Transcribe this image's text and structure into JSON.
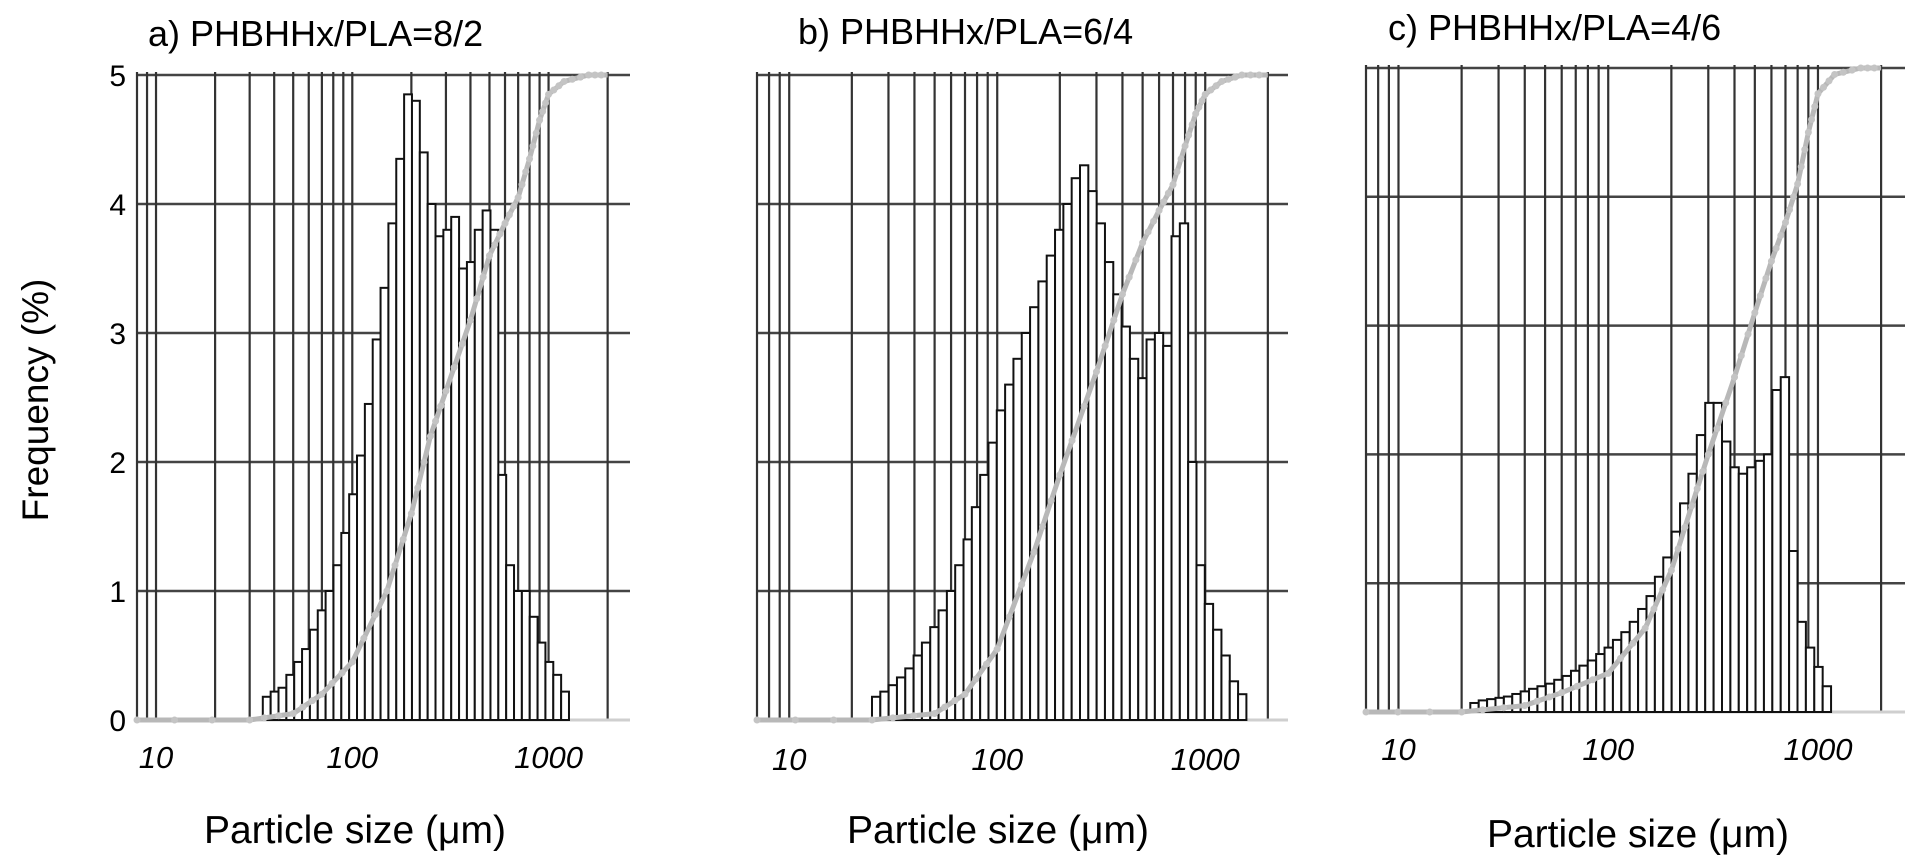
{
  "figure": {
    "ylabel": "Frequency (%)"
  },
  "chart_data": [
    {
      "type": "bar",
      "title": "a) PHBHHx/PLA=8/2",
      "xlabel": "Particle size (μm)",
      "ylabel": "Frequency (%)",
      "x_scale": "log",
      "xlim": [
        8,
        2600
      ],
      "ylim": [
        0,
        5
      ],
      "yticks": [
        "0",
        "1",
        "2",
        "3",
        "4",
        "5"
      ],
      "xticks": [
        {
          "value": 10,
          "label": "10"
        },
        {
          "value": 100,
          "label": "100"
        },
        {
          "value": 1000,
          "label": "1000"
        }
      ],
      "grid": true,
      "bins_per_decade": 25,
      "bin_start": 35,
      "values": [
        0.18,
        0.22,
        0.25,
        0.35,
        0.45,
        0.55,
        0.7,
        0.85,
        1.0,
        1.2,
        1.45,
        1.75,
        2.05,
        2.45,
        2.95,
        3.35,
        3.85,
        4.35,
        4.85,
        4.8,
        4.4,
        4.0,
        3.75,
        3.8,
        3.9,
        3.5,
        3.55,
        3.8,
        3.95,
        3.8,
        1.9,
        1.2,
        1.0,
        1.0,
        0.8,
        0.6,
        0.45,
        0.35,
        0.22
      ],
      "cumulative_curve": [
        [
          8,
          0
        ],
        [
          30,
          0
        ],
        [
          50,
          0.05
        ],
        [
          70,
          0.2
        ],
        [
          100,
          0.45
        ],
        [
          150,
          1.0
        ],
        [
          200,
          1.6
        ],
        [
          250,
          2.2
        ],
        [
          300,
          2.55
        ],
        [
          400,
          3.1
        ],
        [
          500,
          3.6
        ],
        [
          600,
          3.85
        ],
        [
          700,
          4.05
        ],
        [
          800,
          4.35
        ],
        [
          900,
          4.65
        ],
        [
          1000,
          4.85
        ],
        [
          1200,
          4.95
        ],
        [
          1600,
          5.0
        ],
        [
          2000,
          5.0
        ]
      ]
    },
    {
      "type": "bar",
      "title": "b) PHBHHx/PLA=6/4",
      "xlabel": "Particle size (μm)",
      "ylabel": "",
      "x_scale": "log",
      "xlim": [
        7,
        2500
      ],
      "ylim": [
        0,
        5
      ],
      "yticks": [],
      "xticks": [
        {
          "value": 10,
          "label": "10"
        },
        {
          "value": 100,
          "label": "100"
        },
        {
          "value": 1000,
          "label": "1000"
        }
      ],
      "grid": true,
      "bins_per_decade": 25,
      "bin_start": 25,
      "values": [
        0.18,
        0.22,
        0.27,
        0.33,
        0.4,
        0.5,
        0.6,
        0.72,
        0.85,
        1.0,
        1.2,
        1.4,
        1.65,
        1.9,
        2.15,
        2.4,
        2.6,
        2.8,
        3.0,
        3.2,
        3.4,
        3.6,
        3.8,
        4.0,
        4.2,
        4.3,
        4.1,
        3.85,
        3.55,
        3.3,
        3.05,
        2.8,
        2.65,
        2.95,
        3.0,
        2.9,
        3.75,
        3.85,
        2.0,
        1.2,
        0.9,
        0.7,
        0.5,
        0.3,
        0.2
      ],
      "cumulative_curve": [
        [
          7,
          0
        ],
        [
          25,
          0
        ],
        [
          50,
          0.05
        ],
        [
          70,
          0.2
        ],
        [
          100,
          0.55
        ],
        [
          150,
          1.3
        ],
        [
          200,
          1.9
        ],
        [
          300,
          2.7
        ],
        [
          400,
          3.3
        ],
        [
          500,
          3.7
        ],
        [
          600,
          3.95
        ],
        [
          700,
          4.15
        ],
        [
          800,
          4.45
        ],
        [
          900,
          4.7
        ],
        [
          1000,
          4.85
        ],
        [
          1200,
          4.95
        ],
        [
          1500,
          5.0
        ],
        [
          2000,
          5.0
        ]
      ]
    },
    {
      "type": "bar",
      "title": "c) PHBHHx/PLA=4/6",
      "xlabel": "Particle size (μm)",
      "ylabel": "",
      "x_scale": "log",
      "xlim": [
        7,
        2600
      ],
      "ylim": [
        0,
        5
      ],
      "yticks": [],
      "xticks": [
        {
          "value": 10,
          "label": "10"
        },
        {
          "value": 100,
          "label": "100"
        },
        {
          "value": 1000,
          "label": "1000"
        }
      ],
      "grid": true,
      "bins_per_decade": 25,
      "bin_start": 22,
      "values": [
        0.07,
        0.09,
        0.1,
        0.11,
        0.12,
        0.14,
        0.16,
        0.18,
        0.2,
        0.22,
        0.25,
        0.28,
        0.32,
        0.36,
        0.4,
        0.45,
        0.5,
        0.56,
        0.62,
        0.7,
        0.8,
        0.9,
        1.05,
        1.2,
        1.4,
        1.62,
        1.85,
        2.15,
        2.4,
        2.4,
        2.1,
        1.9,
        1.85,
        1.9,
        1.95,
        2.0,
        2.5,
        2.6,
        1.25,
        0.7,
        0.5,
        0.35,
        0.2
      ],
      "cumulative_curve": [
        [
          7,
          0
        ],
        [
          20,
          0
        ],
        [
          40,
          0.05
        ],
        [
          60,
          0.15
        ],
        [
          100,
          0.3
        ],
        [
          150,
          0.65
        ],
        [
          200,
          1.1
        ],
        [
          250,
          1.6
        ],
        [
          300,
          2.0
        ],
        [
          400,
          2.6
        ],
        [
          500,
          3.1
        ],
        [
          600,
          3.5
        ],
        [
          700,
          3.8
        ],
        [
          800,
          4.1
        ],
        [
          900,
          4.5
        ],
        [
          1000,
          4.8
        ],
        [
          1200,
          4.95
        ],
        [
          1600,
          5.0
        ],
        [
          2000,
          5.0
        ]
      ]
    }
  ]
}
